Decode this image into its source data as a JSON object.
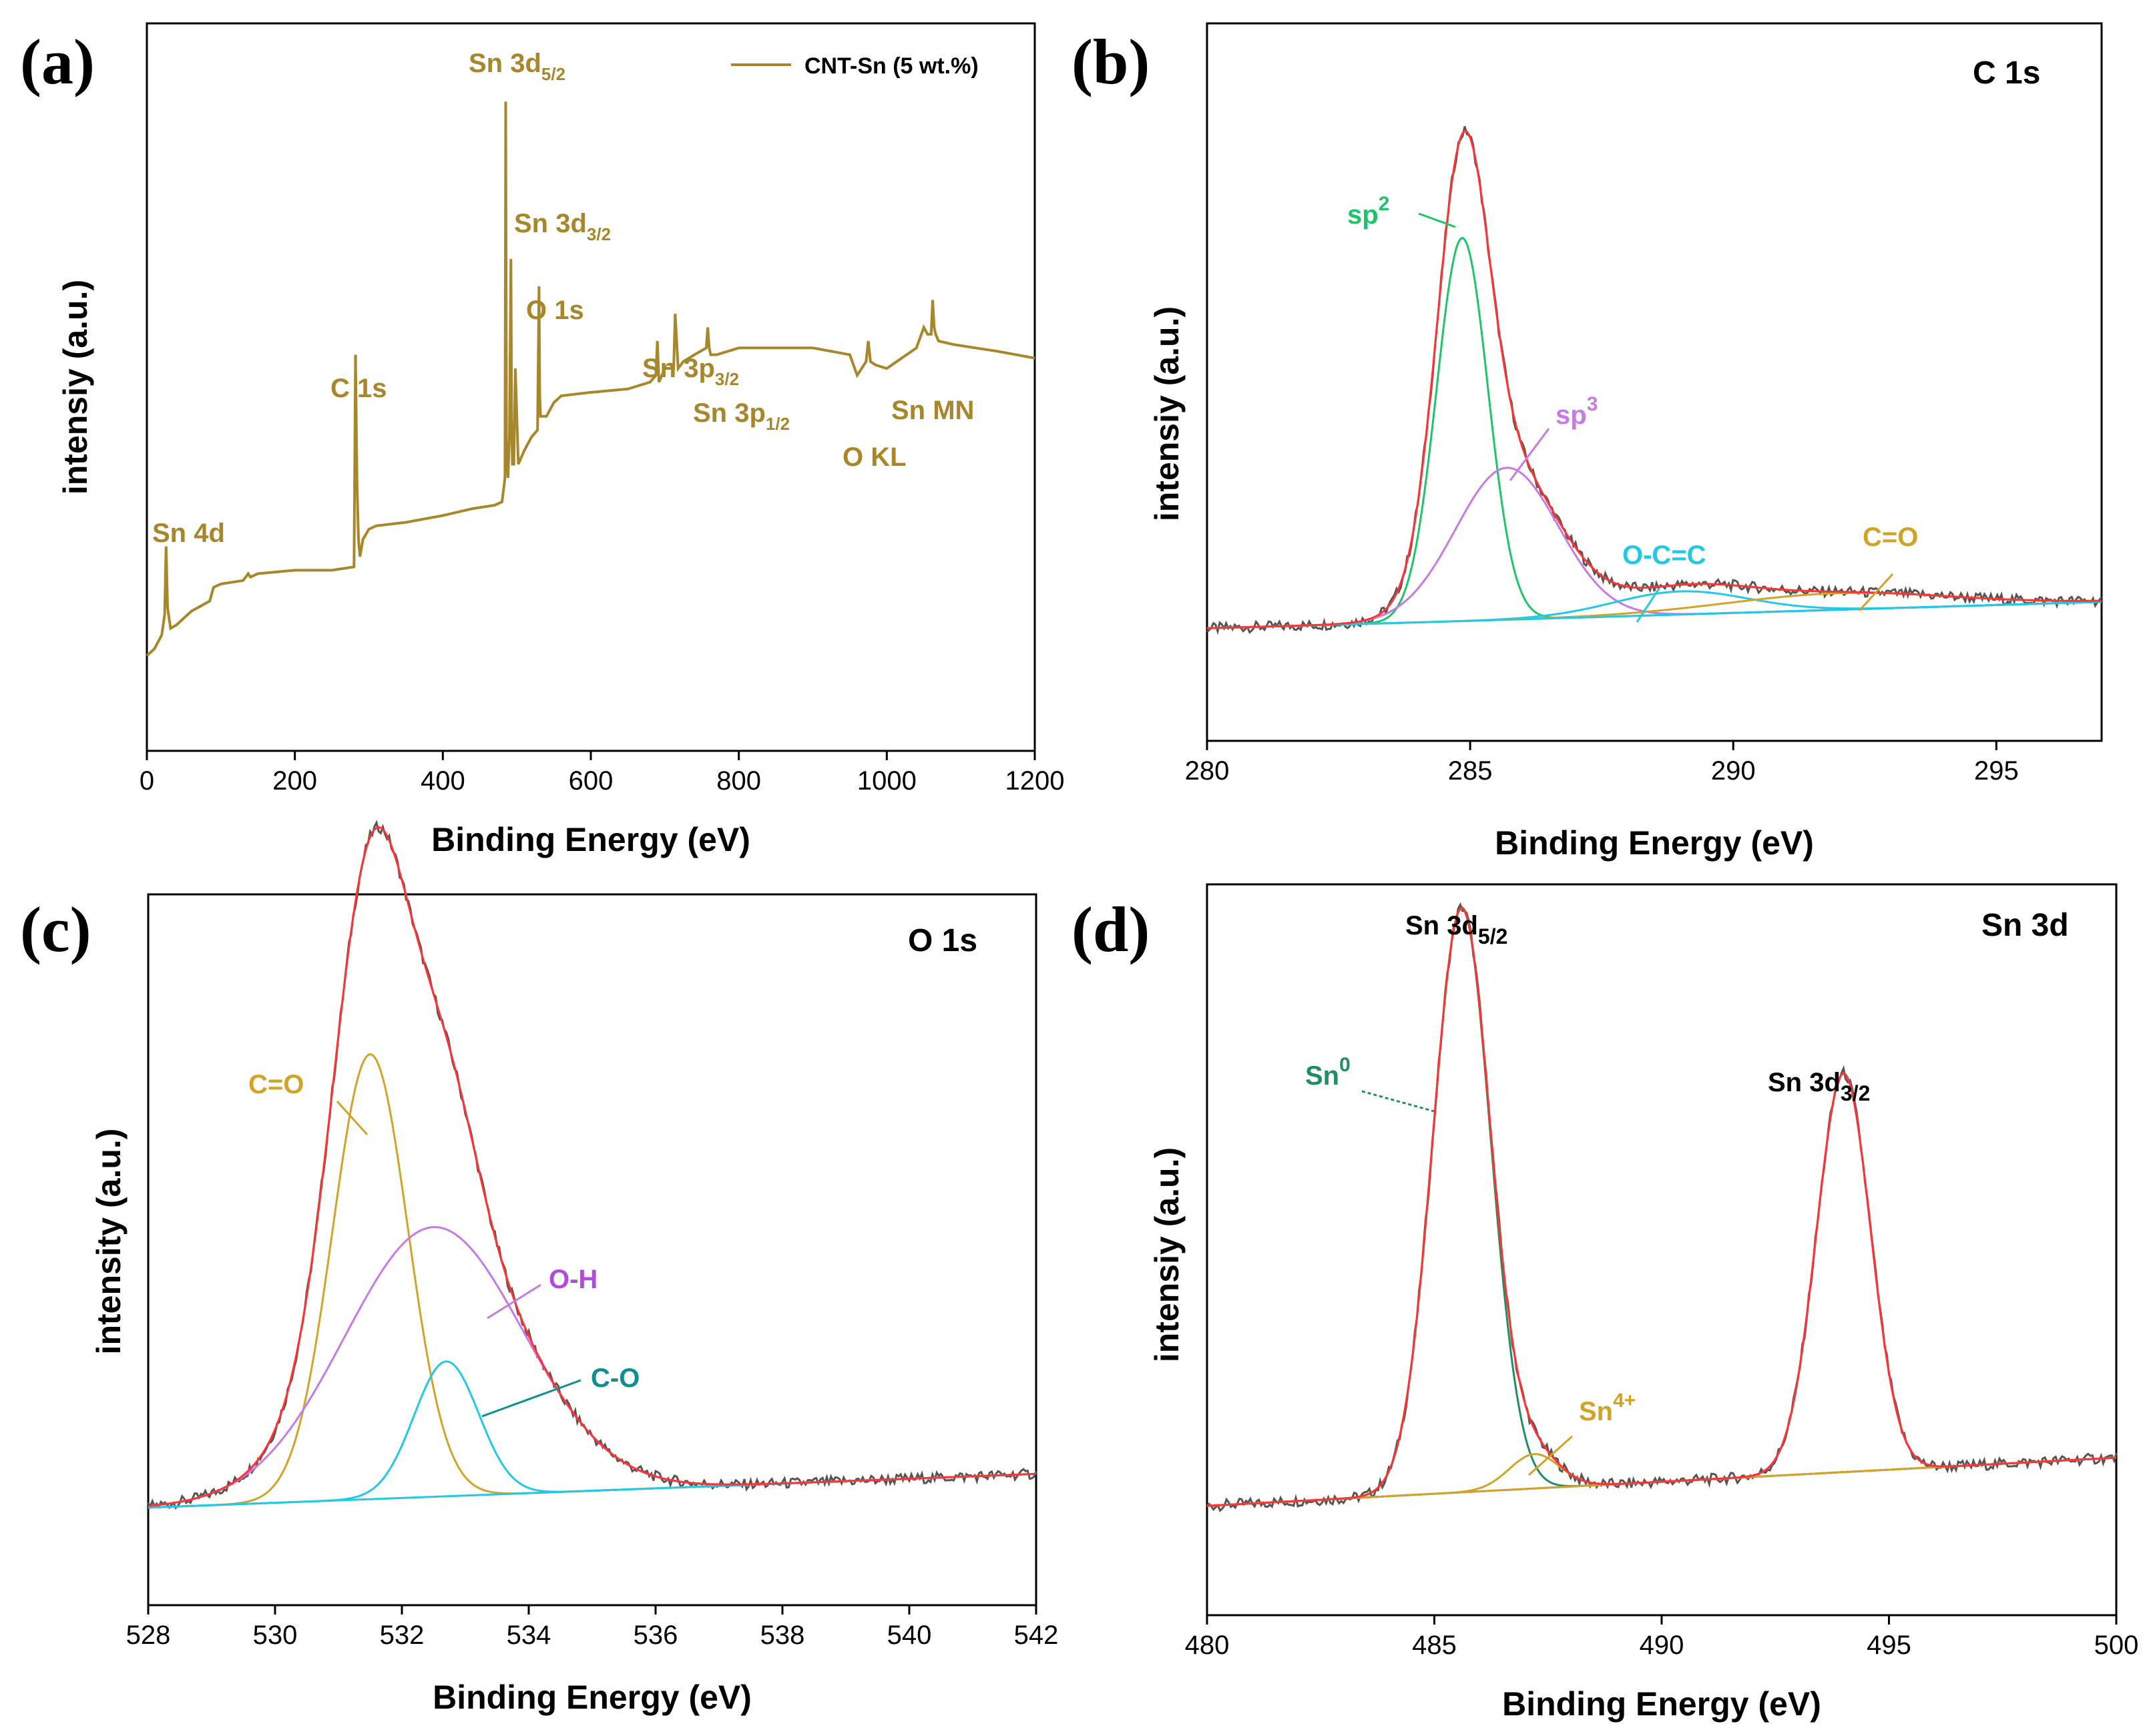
{
  "colors": {
    "survey": "#a8862a",
    "raw": "#555555",
    "envelope": "#ff3333",
    "sp2": "#1ec46a",
    "sp3": "#c77ae6",
    "occ": "#22c9e6",
    "co_b": "#d1a429",
    "background": "#22c9e6",
    "c_eq_o": "#d1a429",
    "oh": "#c77ae6",
    "c_o": "#22c9e6",
    "c_o_label": "#0d8f8f",
    "oh_label": "#b24ae0",
    "sn0": "#1e8f60",
    "sn4": "#d1a429",
    "sn32": "#9a70c4"
  },
  "chart_data": [
    {
      "panel": "(a)",
      "type": "line",
      "xlabel": "Binding Energy (eV)",
      "ylabel": "intensiy (a.u.)",
      "xlim": [
        0,
        1200
      ],
      "ylim": [
        0,
        100
      ],
      "xticks": [
        0,
        200,
        400,
        600,
        800,
        1000,
        1200
      ],
      "legend": "CNT-Sn (5 wt.%)",
      "series": [
        {
          "name": "CNT-Sn (5 wt.%)",
          "x": [
            0,
            10,
            20,
            24,
            26,
            28,
            32,
            40,
            60,
            85,
            90,
            100,
            130,
            137,
            140,
            150,
            200,
            250,
            280,
            282,
            284,
            286,
            288,
            292,
            300,
            310,
            350,
            400,
            440,
            470,
            480,
            484,
            485,
            486,
            488,
            490,
            492,
            493,
            494,
            496,
            498,
            502,
            510,
            520,
            528,
            530,
            531,
            532,
            534,
            540,
            550,
            560,
            600,
            650,
            680,
            688,
            690,
            692,
            700,
            712,
            714,
            716,
            718,
            725,
            740,
            756,
            758,
            760,
            762,
            770,
            800,
            830,
            880,
            900,
            950,
            960,
            972,
            975,
            978,
            985,
            1000,
            1040,
            1050,
            1055,
            1060,
            1062,
            1064,
            1066,
            1070,
            1090,
            1120,
            1150,
            1200
          ],
          "y": [
            10,
            11,
            13,
            16,
            26,
            17,
            14,
            14.5,
            16.5,
            18,
            20,
            20.5,
            21,
            22,
            21.5,
            22,
            22.5,
            22.5,
            23,
            54,
            35,
            27,
            24.5,
            27,
            28.5,
            29,
            29.5,
            30.5,
            31.5,
            32,
            32.5,
            36,
            91,
            40,
            36,
            42,
            68,
            45,
            38,
            38,
            52,
            38,
            40,
            42,
            43,
            64,
            48,
            45,
            45,
            45,
            47,
            48,
            48.5,
            49,
            50,
            51,
            56,
            50,
            52,
            52,
            60,
            56,
            52,
            53,
            54,
            55,
            58,
            55,
            54,
            54,
            55,
            55,
            55,
            55,
            54,
            51,
            53,
            56,
            53,
            52.5,
            52,
            55,
            58,
            57,
            57,
            62,
            58,
            57,
            56,
            55.5,
            55,
            54.5,
            53.5
          ]
        }
      ],
      "annotations": [
        {
          "label": "Sn 4d",
          "at": [
            28,
            26
          ]
        },
        {
          "label": "C 1s",
          "at": [
            283,
            54
          ]
        },
        {
          "label": "Sn 3d",
          "sub": "5/2",
          "at": [
            487,
            91
          ]
        },
        {
          "label": "Sn 3d",
          "sub": "3/2",
          "at": [
            495,
            68
          ]
        },
        {
          "label": "O 1s",
          "at": [
            531,
            64
          ]
        },
        {
          "label": "Sn 3p",
          "sub": "3/2",
          "at": [
            716,
            60
          ]
        },
        {
          "label": "Sn 3p",
          "sub": "1/2",
          "at": [
            758,
            58
          ]
        },
        {
          "label": "O KL",
          "at": [
            975,
            56
          ]
        },
        {
          "label": "Sn MN",
          "at": [
            1062,
            62
          ]
        }
      ]
    },
    {
      "panel": "(b)",
      "type": "line",
      "title": "C 1s",
      "xlabel": "Binding Energy (eV)",
      "ylabel": "intensiy (a.u.)",
      "xlim": [
        280,
        297
      ],
      "ylim": [
        0,
        100
      ],
      "xticks": [
        280,
        285,
        290,
        295
      ],
      "background": {
        "x": [
          280,
          284.5,
          297
        ],
        "y": [
          13,
          14,
          17
        ]
      },
      "components": [
        {
          "name": "sp2",
          "center": 284.85,
          "height": 58,
          "fwhm": 1.15
        },
        {
          "name": "sp3",
          "center": 285.7,
          "height": 23,
          "fwhm": 2.3
        },
        {
          "name": "O-C=C",
          "center": 289.0,
          "height": 3.5,
          "fwhm": 3.0
        },
        {
          "name": "C=O",
          "center": 292.0,
          "height": 2.5,
          "fwhm": 5.0
        }
      ],
      "annotations": [
        {
          "label": "sp",
          "sup": "2"
        },
        {
          "label": "sp",
          "sup": "3"
        },
        {
          "label": "O-C=C"
        },
        {
          "label": "C=O"
        }
      ]
    },
    {
      "panel": "(c)",
      "type": "line",
      "title": "O 1s",
      "xlabel": "Binding Energy (eV)",
      "ylabel": "intensity (a.u.)",
      "xlim": [
        528,
        542
      ],
      "ylim": [
        0,
        100
      ],
      "xticks": [
        528,
        530,
        532,
        534,
        536,
        538,
        540,
        542
      ],
      "background": {
        "x": [
          528,
          542
        ],
        "y": [
          12,
          17
        ]
      },
      "components": [
        {
          "name": "C=O",
          "center": 531.5,
          "height": 66,
          "fwhm": 1.4
        },
        {
          "name": "O-H",
          "center": 532.5,
          "height": 40,
          "fwhm": 3.3
        },
        {
          "name": "C-O",
          "center": 532.7,
          "height": 20,
          "fwhm": 1.2
        }
      ],
      "annotations": [
        {
          "label": "C=O"
        },
        {
          "label": "O-H"
        },
        {
          "label": "C-O"
        }
      ]
    },
    {
      "panel": "(d)",
      "type": "line",
      "title": "Sn 3d",
      "xlabel": "Binding Energy (eV)",
      "ylabel": "intensiy (a.u.)",
      "xlim": [
        480,
        500
      ],
      "ylim": [
        0,
        100
      ],
      "xticks": [
        480,
        485,
        490,
        495,
        500
      ],
      "background": {
        "x": [
          480,
          500
        ],
        "y": [
          13,
          20
        ]
      },
      "components": [
        {
          "name": "Sn0",
          "center": 485.6,
          "height": 85,
          "fwhm": 1.5
        },
        {
          "name": "Sn4+",
          "center": 487.2,
          "height": 5,
          "fwhm": 1.3
        },
        {
          "name": "Sn 3d3/2",
          "center": 494.0,
          "height": 58,
          "fwhm": 1.4
        }
      ],
      "annotations": [
        {
          "label": "Sn 3d",
          "sub": "5/2"
        },
        {
          "label": "Sn 3d",
          "sub": "3/2"
        },
        {
          "label": "Sn",
          "sup": "0"
        },
        {
          "label": "Sn",
          "sup": "4+"
        }
      ]
    }
  ]
}
